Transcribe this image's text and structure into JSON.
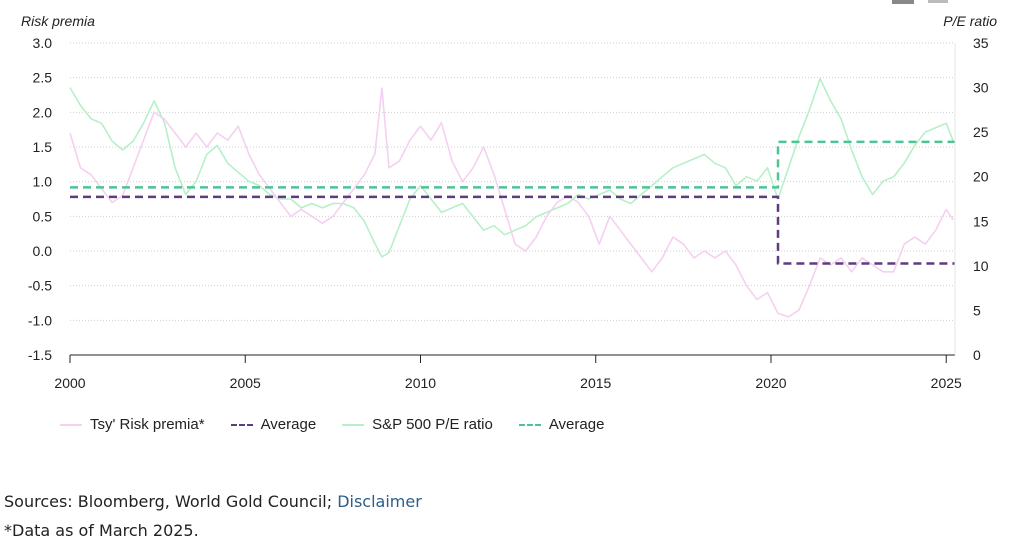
{
  "chart_data": {
    "type": "line",
    "left_axis_title": "Risk premia",
    "right_axis_title": "P/E ratio",
    "left_ylim": [
      -1.5,
      3.0
    ],
    "left_ticks": [
      "3.0",
      "2.5",
      "2.0",
      "1.5",
      "1.0",
      "0.5",
      "0.0",
      "-0.5",
      "-1.0",
      "-1.5"
    ],
    "right_ylim": [
      0,
      35
    ],
    "right_ticks": [
      "35",
      "30",
      "25",
      "20",
      "15",
      "10",
      "5",
      "0"
    ],
    "xlim": [
      2000,
      2025.25
    ],
    "x_ticks": [
      "2000",
      "2005",
      "2010",
      "2015",
      "2020",
      "2025"
    ],
    "grid": true,
    "legend_position": "bottom-left",
    "series": [
      {
        "name": "Tsy' Risk premia*",
        "axis": "left",
        "color": "#f4d1f0",
        "style": "solid",
        "points": [
          [
            2000.0,
            1.7
          ],
          [
            2000.3,
            1.2
          ],
          [
            2000.6,
            1.1
          ],
          [
            2000.9,
            0.9
          ],
          [
            2001.2,
            0.7
          ],
          [
            2001.5,
            0.8
          ],
          [
            2001.8,
            1.2
          ],
          [
            2002.1,
            1.6
          ],
          [
            2002.4,
            2.0
          ],
          [
            2002.7,
            1.9
          ],
          [
            2003.0,
            1.7
          ],
          [
            2003.3,
            1.5
          ],
          [
            2003.6,
            1.7
          ],
          [
            2003.9,
            1.5
          ],
          [
            2004.2,
            1.7
          ],
          [
            2004.5,
            1.6
          ],
          [
            2004.8,
            1.8
          ],
          [
            2005.1,
            1.4
          ],
          [
            2005.4,
            1.1
          ],
          [
            2005.7,
            0.9
          ],
          [
            2006.0,
            0.7
          ],
          [
            2006.3,
            0.5
          ],
          [
            2006.6,
            0.6
          ],
          [
            2006.9,
            0.5
          ],
          [
            2007.2,
            0.4
          ],
          [
            2007.5,
            0.5
          ],
          [
            2007.8,
            0.7
          ],
          [
            2008.1,
            0.9
          ],
          [
            2008.4,
            1.1
          ],
          [
            2008.7,
            1.4
          ],
          [
            2008.9,
            2.35
          ],
          [
            2009.1,
            1.2
          ],
          [
            2009.4,
            1.3
          ],
          [
            2009.7,
            1.6
          ],
          [
            2010.0,
            1.8
          ],
          [
            2010.3,
            1.6
          ],
          [
            2010.6,
            1.85
          ],
          [
            2010.9,
            1.3
          ],
          [
            2011.2,
            1.0
          ],
          [
            2011.5,
            1.2
          ],
          [
            2011.8,
            1.5
          ],
          [
            2012.1,
            1.1
          ],
          [
            2012.4,
            0.6
          ],
          [
            2012.7,
            0.1
          ],
          [
            2013.0,
            0.0
          ],
          [
            2013.3,
            0.2
          ],
          [
            2013.6,
            0.5
          ],
          [
            2013.9,
            0.7
          ],
          [
            2014.2,
            0.8
          ],
          [
            2014.5,
            0.7
          ],
          [
            2014.8,
            0.5
          ],
          [
            2015.1,
            0.1
          ],
          [
            2015.4,
            0.5
          ],
          [
            2015.7,
            0.3
          ],
          [
            2016.0,
            0.1
          ],
          [
            2016.3,
            -0.1
          ],
          [
            2016.6,
            -0.3
          ],
          [
            2016.9,
            -0.1
          ],
          [
            2017.2,
            0.2
          ],
          [
            2017.5,
            0.1
          ],
          [
            2017.8,
            -0.1
          ],
          [
            2018.1,
            0.0
          ],
          [
            2018.4,
            -0.1
          ],
          [
            2018.7,
            0.0
          ],
          [
            2019.0,
            -0.2
          ],
          [
            2019.3,
            -0.5
          ],
          [
            2019.6,
            -0.7
          ],
          [
            2019.9,
            -0.6
          ],
          [
            2020.2,
            -0.9
          ],
          [
            2020.5,
            -0.95
          ],
          [
            2020.8,
            -0.85
          ],
          [
            2021.1,
            -0.5
          ],
          [
            2021.4,
            -0.1
          ],
          [
            2021.7,
            -0.2
          ],
          [
            2022.0,
            -0.1
          ],
          [
            2022.3,
            -0.3
          ],
          [
            2022.6,
            -0.1
          ],
          [
            2022.9,
            -0.2
          ],
          [
            2023.2,
            -0.3
          ],
          [
            2023.5,
            -0.3
          ],
          [
            2023.8,
            0.1
          ],
          [
            2024.1,
            0.2
          ],
          [
            2024.4,
            0.1
          ],
          [
            2024.7,
            0.3
          ],
          [
            2025.0,
            0.6
          ],
          [
            2025.2,
            0.45
          ]
        ]
      },
      {
        "name": "Average",
        "axis": "left",
        "color": "#5e3c7e",
        "style": "dashed",
        "points": [
          [
            2000.0,
            0.78
          ],
          [
            2020.2,
            0.78
          ],
          [
            2020.2,
            -0.18
          ],
          [
            2025.25,
            -0.18
          ]
        ]
      },
      {
        "name": "S&P 500 P/E ratio",
        "axis": "right",
        "color": "#b6f0c8",
        "style": "solid",
        "points": [
          [
            2000.0,
            30.0
          ],
          [
            2000.3,
            28.0
          ],
          [
            2000.6,
            26.5
          ],
          [
            2000.9,
            26.0
          ],
          [
            2001.2,
            24.0
          ],
          [
            2001.5,
            23.0
          ],
          [
            2001.8,
            24.0
          ],
          [
            2002.1,
            26.0
          ],
          [
            2002.4,
            28.5
          ],
          [
            2002.7,
            26.0
          ],
          [
            2003.0,
            21.0
          ],
          [
            2003.3,
            18.0
          ],
          [
            2003.6,
            19.5
          ],
          [
            2003.9,
            22.5
          ],
          [
            2004.2,
            23.5
          ],
          [
            2004.5,
            21.5
          ],
          [
            2004.8,
            20.5
          ],
          [
            2005.1,
            19.5
          ],
          [
            2005.4,
            19.0
          ],
          [
            2005.7,
            18.0
          ],
          [
            2006.0,
            17.5
          ],
          [
            2006.3,
            17.5
          ],
          [
            2006.6,
            16.5
          ],
          [
            2006.9,
            17.0
          ],
          [
            2007.2,
            16.5
          ],
          [
            2007.5,
            17.0
          ],
          [
            2007.8,
            17.0
          ],
          [
            2008.1,
            16.5
          ],
          [
            2008.4,
            15.0
          ],
          [
            2008.7,
            12.5
          ],
          [
            2008.9,
            11.0
          ],
          [
            2009.1,
            11.5
          ],
          [
            2009.4,
            14.5
          ],
          [
            2009.7,
            17.5
          ],
          [
            2010.0,
            19.0
          ],
          [
            2010.3,
            17.5
          ],
          [
            2010.6,
            16.0
          ],
          [
            2010.9,
            16.5
          ],
          [
            2011.2,
            17.0
          ],
          [
            2011.5,
            15.5
          ],
          [
            2011.8,
            14.0
          ],
          [
            2012.1,
            14.5
          ],
          [
            2012.4,
            13.5
          ],
          [
            2012.7,
            14.0
          ],
          [
            2013.0,
            14.5
          ],
          [
            2013.3,
            15.5
          ],
          [
            2013.6,
            16.0
          ],
          [
            2013.9,
            16.5
          ],
          [
            2014.2,
            17.0
          ],
          [
            2014.5,
            18.0
          ],
          [
            2014.8,
            17.5
          ],
          [
            2015.1,
            18.0
          ],
          [
            2015.4,
            18.5
          ],
          [
            2015.7,
            17.5
          ],
          [
            2016.0,
            17.0
          ],
          [
            2016.3,
            18.0
          ],
          [
            2016.6,
            19.0
          ],
          [
            2016.9,
            20.0
          ],
          [
            2017.2,
            21.0
          ],
          [
            2017.5,
            21.5
          ],
          [
            2017.8,
            22.0
          ],
          [
            2018.1,
            22.5
          ],
          [
            2018.4,
            21.5
          ],
          [
            2018.7,
            21.0
          ],
          [
            2019.0,
            19.0
          ],
          [
            2019.3,
            20.0
          ],
          [
            2019.6,
            19.5
          ],
          [
            2019.9,
            21.0
          ],
          [
            2020.2,
            17.5
          ],
          [
            2020.5,
            21.0
          ],
          [
            2020.8,
            24.5
          ],
          [
            2021.1,
            27.5
          ],
          [
            2021.4,
            31.0
          ],
          [
            2021.7,
            28.5
          ],
          [
            2022.0,
            26.5
          ],
          [
            2022.3,
            23.0
          ],
          [
            2022.6,
            20.0
          ],
          [
            2022.9,
            18.0
          ],
          [
            2023.2,
            19.5
          ],
          [
            2023.5,
            20.0
          ],
          [
            2023.8,
            21.5
          ],
          [
            2024.1,
            23.5
          ],
          [
            2024.4,
            25.0
          ],
          [
            2024.7,
            25.5
          ],
          [
            2025.0,
            26.0
          ],
          [
            2025.2,
            24.0
          ]
        ]
      },
      {
        "name": "Average",
        "axis": "right",
        "color": "#4cc497",
        "style": "dashed",
        "points": [
          [
            2000.0,
            18.8
          ],
          [
            2020.2,
            18.8
          ],
          [
            2020.2,
            23.9
          ],
          [
            2025.25,
            23.9
          ]
        ]
      }
    ]
  },
  "footer": {
    "sources_prefix": "Sources: Bloomberg, World Gold Council; ",
    "disclaimer_link": "Disclaimer",
    "note": "*Data as of March 2025."
  }
}
